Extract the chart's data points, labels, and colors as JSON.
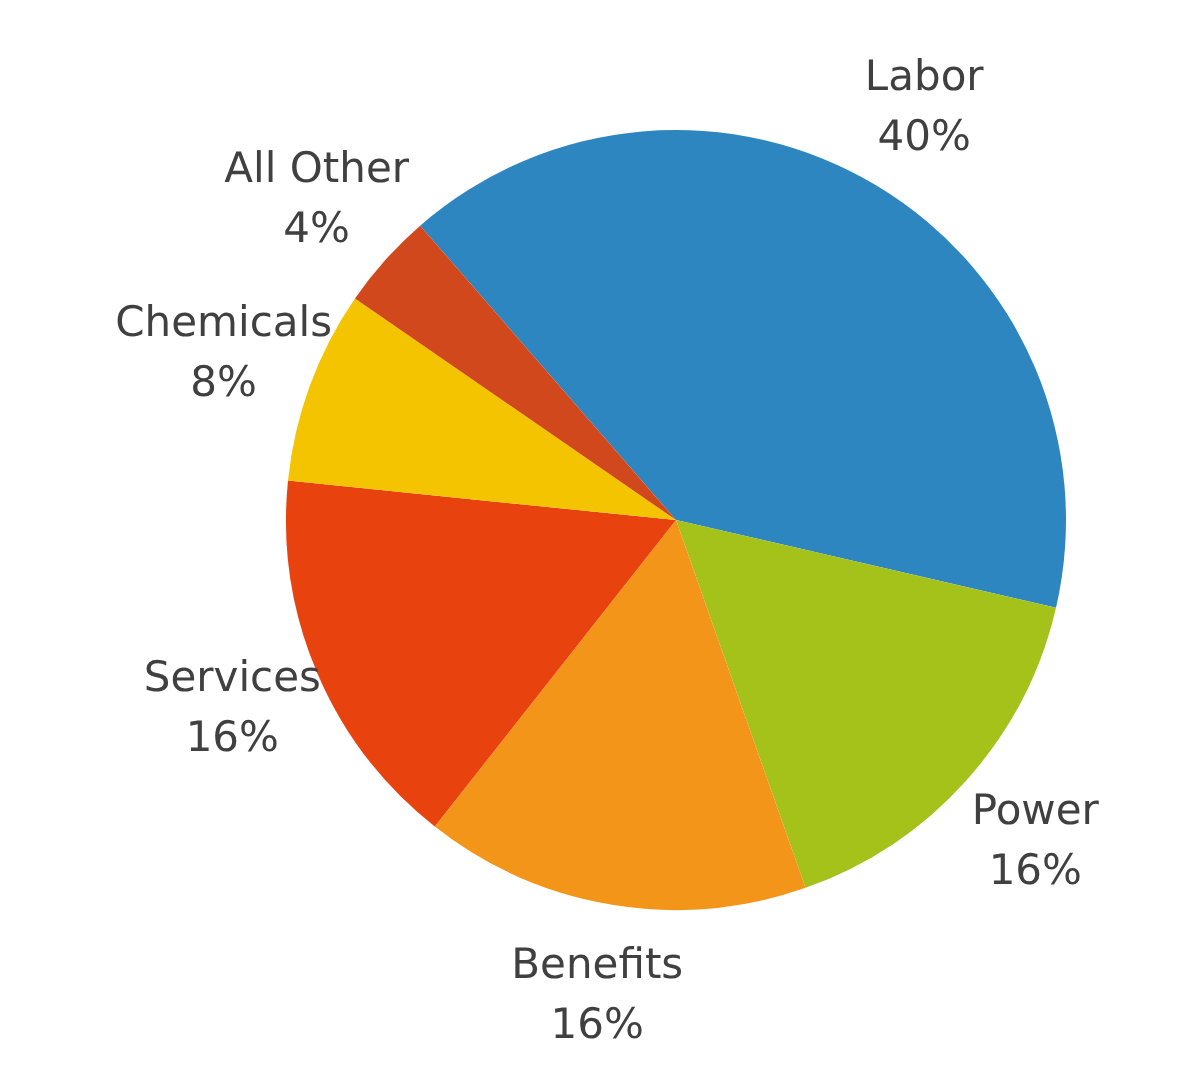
{
  "chart_data": {
    "type": "pie",
    "categories": [
      "Labor",
      "Power",
      "Benefits",
      "Services",
      "Chemicals",
      "All Other"
    ],
    "values": [
      40,
      16,
      16,
      16,
      8,
      4
    ],
    "value_labels": [
      "40%",
      "16%",
      "16%",
      "16%",
      "8%",
      "4%"
    ],
    "colors": [
      "#2e86c1",
      "#a4c21a",
      "#f39518",
      "#e8420f",
      "#f5c400",
      "#d0481c"
    ],
    "legend": false
  }
}
